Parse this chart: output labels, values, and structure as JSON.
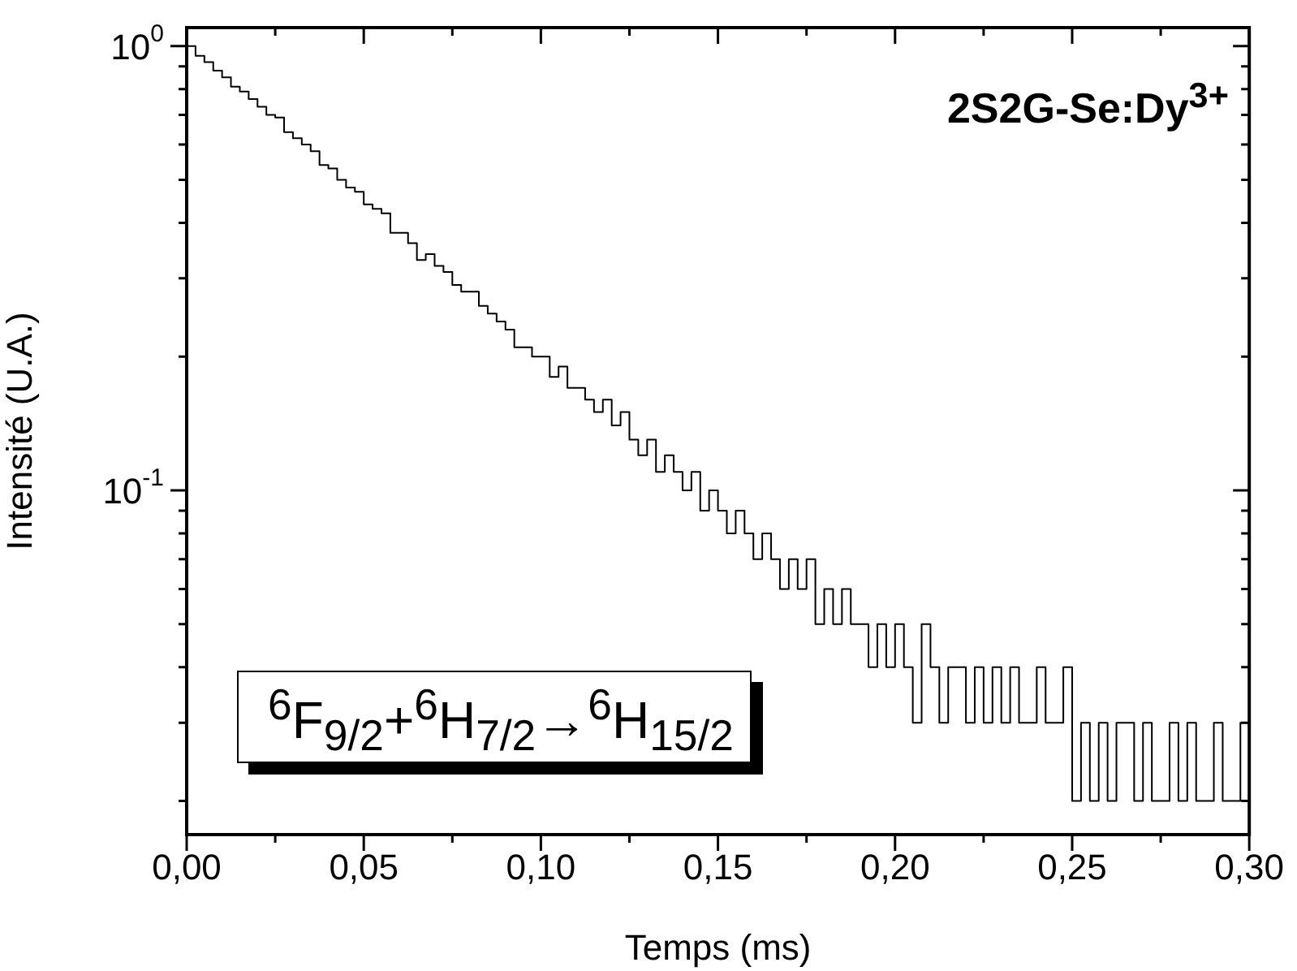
{
  "chart_data": {
    "type": "step",
    "xlabel": "Temps (ms)",
    "ylabel": "Intensité (U.A.)",
    "annotations": [
      "2S2G-Se:Dy$^{3+}$",
      "$^{6}$F$_{9/2}$+$^{6}$H$_{7/2}$→$^{6}$H$_{15/2}$"
    ],
    "log": "y",
    "grid": false,
    "legend": false,
    "marker": "none",
    "line_style": "solid",
    "xlim": [
      0,
      0.3
    ],
    "ylim": [
      0.0168,
      1.1
    ],
    "xticks": [
      {
        "value": 0,
        "label": "0,00"
      },
      {
        "value": 0.025,
        "label": null
      },
      {
        "value": 0.05,
        "label": "0,05"
      },
      {
        "value": 0.075,
        "label": null
      },
      {
        "value": 0.1,
        "label": "0,10"
      },
      {
        "value": 0.125,
        "label": null
      },
      {
        "value": 0.15,
        "label": "0,15"
      },
      {
        "value": 0.175,
        "label": null
      },
      {
        "value": 0.2,
        "label": "0,20"
      },
      {
        "value": 0.225,
        "label": null
      },
      {
        "value": 0.25,
        "label": "0,25"
      },
      {
        "value": 0.275,
        "label": null
      },
      {
        "value": 0.3,
        "label": "0,30"
      }
    ],
    "yticks": [
      {
        "value": 0.02,
        "label": null
      },
      {
        "value": 0.03,
        "label": null
      },
      {
        "value": 0.04,
        "label": null
      },
      {
        "value": 0.05,
        "label": null
      },
      {
        "value": 0.06,
        "label": null
      },
      {
        "value": 0.07,
        "label": null
      },
      {
        "value": 0.08,
        "label": null
      },
      {
        "value": 0.09,
        "label": null
      },
      {
        "value": 0.1,
        "label": "10$^{-1}$"
      },
      {
        "value": 0.2,
        "label": null
      },
      {
        "value": 0.3,
        "label": null
      },
      {
        "value": 0.4,
        "label": null
      },
      {
        "value": 0.5,
        "label": null
      },
      {
        "value": 0.6,
        "label": null
      },
      {
        "value": 0.7,
        "label": null
      },
      {
        "value": 0.8,
        "label": null
      },
      {
        "value": 0.9,
        "label": null
      },
      {
        "value": 1,
        "label": "10$^{0}$"
      }
    ],
    "x": [
      0,
      0.0025,
      0.005,
      0.0075,
      0.01,
      0.0125,
      0.015,
      0.0175,
      0.02,
      0.0225,
      0.025,
      0.0275,
      0.03,
      0.0325,
      0.035,
      0.0375,
      0.04,
      0.0425,
      0.045,
      0.0475,
      0.05,
      0.0525,
      0.055,
      0.0575,
      0.06,
      0.0625,
      0.065,
      0.0675,
      0.07,
      0.0725,
      0.075,
      0.0775,
      0.08,
      0.0825,
      0.085,
      0.0875,
      0.09,
      0.0925,
      0.095,
      0.0975,
      0.1,
      0.1025,
      0.105,
      0.1075,
      0.11,
      0.1125,
      0.115,
      0.1175,
      0.12,
      0.1225,
      0.125,
      0.1275,
      0.13,
      0.1325,
      0.135,
      0.1375,
      0.14,
      0.1425,
      0.145,
      0.1475,
      0.15,
      0.1525,
      0.155,
      0.1575,
      0.16,
      0.1625,
      0.165,
      0.1675,
      0.17,
      0.1725,
      0.175,
      0.1775,
      0.18,
      0.1825,
      0.185,
      0.1875,
      0.19,
      0.1925,
      0.195,
      0.1975,
      0.2,
      0.2025,
      0.205,
      0.2075,
      0.21,
      0.2125,
      0.215,
      0.2175,
      0.22,
      0.2225,
      0.225,
      0.2275,
      0.23,
      0.2325,
      0.235,
      0.2375,
      0.24,
      0.2425,
      0.245,
      0.2475,
      0.25,
      0.2525,
      0.255,
      0.2575,
      0.26,
      0.2625,
      0.265,
      0.2675,
      0.27,
      0.2725,
      0.275,
      0.2775,
      0.28,
      0.2825,
      0.285,
      0.2875,
      0.29,
      0.2925,
      0.295,
      0.2975,
      0.3
    ],
    "series": [
      {
        "color": "#000000",
        "values": [
          1.0,
          0.95,
          0.92,
          0.88,
          0.85,
          0.81,
          0.79,
          0.76,
          0.73,
          0.7,
          0.69,
          0.64,
          0.62,
          0.6,
          0.58,
          0.54,
          0.53,
          0.5,
          0.48,
          0.47,
          0.44,
          0.43,
          0.42,
          0.38,
          0.38,
          0.36,
          0.33,
          0.34,
          0.32,
          0.31,
          0.29,
          0.28,
          0.28,
          0.26,
          0.25,
          0.24,
          0.23,
          0.21,
          0.21,
          0.2,
          0.2,
          0.18,
          0.19,
          0.17,
          0.17,
          0.16,
          0.15,
          0.16,
          0.14,
          0.15,
          0.13,
          0.12,
          0.13,
          0.11,
          0.12,
          0.11,
          0.1,
          0.11,
          0.09,
          0.1,
          0.09,
          0.08,
          0.09,
          0.08,
          0.07,
          0.08,
          0.07,
          0.06,
          0.07,
          0.06,
          0.07,
          0.05,
          0.06,
          0.05,
          0.06,
          0.05,
          0.05,
          0.04,
          0.05,
          0.04,
          0.05,
          0.04,
          0.03,
          0.05,
          0.04,
          0.03,
          0.04,
          0.04,
          0.03,
          0.04,
          0.03,
          0.04,
          0.03,
          0.04,
          0.03,
          0.03,
          0.04,
          0.03,
          0.03,
          0.04,
          0.02,
          0.03,
          0.02,
          0.03,
          0.02,
          0.03,
          0.03,
          0.02,
          0.03,
          0.02,
          0.02,
          0.03,
          0.02,
          0.03,
          0.02,
          0.02,
          0.03,
          0.02,
          0.02,
          0.03,
          0.02
        ]
      }
    ]
  }
}
